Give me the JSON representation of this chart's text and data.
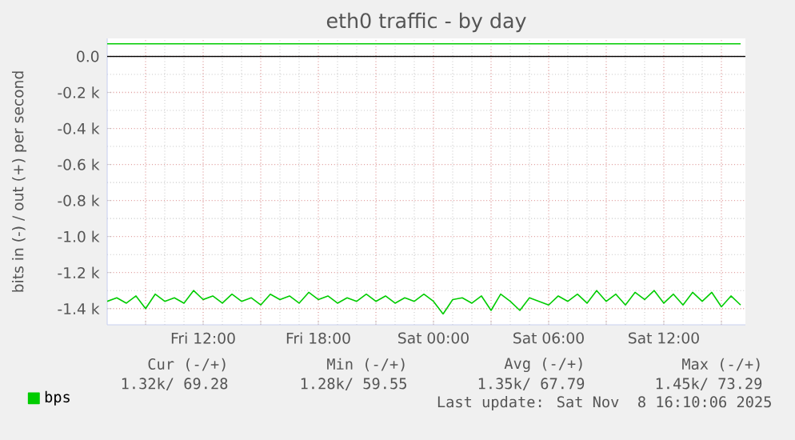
{
  "chart_data": {
    "type": "line",
    "title": "eth0 traffic - by day",
    "ylabel": "bits in (-) / out (+) per second",
    "x": [
      "2025-11-07T07:00",
      "2025-11-07T07:30",
      "2025-11-07T08:00",
      "2025-11-07T08:30",
      "2025-11-07T09:00",
      "2025-11-07T09:30",
      "2025-11-07T10:00",
      "2025-11-07T10:30",
      "2025-11-07T11:00",
      "2025-11-07T11:30",
      "2025-11-07T12:00",
      "2025-11-07T12:30",
      "2025-11-07T13:00",
      "2025-11-07T13:30",
      "2025-11-07T14:00",
      "2025-11-07T14:30",
      "2025-11-07T15:00",
      "2025-11-07T15:30",
      "2025-11-07T16:00",
      "2025-11-07T16:30",
      "2025-11-07T17:00",
      "2025-11-07T17:30",
      "2025-11-07T18:00",
      "2025-11-07T18:30",
      "2025-11-07T19:00",
      "2025-11-07T19:30",
      "2025-11-07T20:00",
      "2025-11-07T20:30",
      "2025-11-07T21:00",
      "2025-11-07T21:30",
      "2025-11-07T22:00",
      "2025-11-07T22:30",
      "2025-11-07T23:00",
      "2025-11-07T23:30",
      "2025-11-08T00:00",
      "2025-11-08T00:30",
      "2025-11-08T01:00",
      "2025-11-08T01:30",
      "2025-11-08T02:00",
      "2025-11-08T02:30",
      "2025-11-08T03:00",
      "2025-11-08T03:30",
      "2025-11-08T04:00",
      "2025-11-08T04:30",
      "2025-11-08T05:00",
      "2025-11-08T05:30",
      "2025-11-08T06:00",
      "2025-11-08T06:30",
      "2025-11-08T07:00",
      "2025-11-08T07:30",
      "2025-11-08T08:00",
      "2025-11-08T08:30",
      "2025-11-08T09:00",
      "2025-11-08T09:30",
      "2025-11-08T10:00",
      "2025-11-08T10:30",
      "2025-11-08T11:00",
      "2025-11-08T11:30",
      "2025-11-08T12:00",
      "2025-11-08T12:30",
      "2025-11-08T13:00",
      "2025-11-08T13:30",
      "2025-11-08T14:00",
      "2025-11-08T14:30",
      "2025-11-08T15:00",
      "2025-11-08T15:30",
      "2025-11-08T16:00"
    ],
    "series": [
      {
        "name": "bps",
        "color": "#00cc00",
        "values": [
          -1360,
          -1340,
          -1370,
          -1330,
          -1400,
          -1320,
          -1360,
          -1340,
          -1370,
          -1300,
          -1350,
          -1330,
          -1370,
          -1320,
          -1360,
          -1340,
          -1380,
          -1320,
          -1350,
          -1330,
          -1370,
          -1310,
          -1350,
          -1330,
          -1370,
          -1340,
          -1360,
          -1320,
          -1360,
          -1330,
          -1370,
          -1340,
          -1360,
          -1320,
          -1360,
          -1430,
          -1350,
          -1340,
          -1370,
          -1330,
          -1410,
          -1320,
          -1360,
          -1410,
          -1340,
          -1360,
          -1380,
          -1330,
          -1360,
          -1320,
          -1370,
          -1300,
          -1360,
          -1320,
          -1380,
          -1310,
          -1350,
          -1300,
          -1370,
          -1320,
          -1380,
          -1310,
          -1360,
          -1310,
          -1390,
          -1330,
          -1380
        ]
      },
      {
        "color": "#00cc00",
        "values": [
          70,
          70,
          70,
          70,
          70,
          70,
          70,
          70,
          70,
          70,
          70,
          70,
          70,
          70,
          70,
          70,
          70,
          70,
          70,
          70,
          70,
          70,
          70,
          70,
          70,
          70,
          70,
          70,
          70,
          70,
          70,
          70,
          70,
          70,
          70,
          70,
          70,
          70,
          70,
          70,
          70,
          70,
          70,
          70,
          70,
          70,
          70,
          70,
          70,
          70,
          70,
          70,
          70,
          70,
          70,
          70,
          70,
          70,
          70,
          70,
          70,
          70,
          70,
          70,
          70,
          70,
          70
        ]
      }
    ],
    "xlim": [
      "2025-11-07T07:00",
      "2025-11-08T16:15"
    ],
    "xticks": [
      {
        "value": "2025-11-07T09:00",
        "label": null
      },
      {
        "value": "2025-11-07T12:00",
        "label": "Fri 12:00"
      },
      {
        "value": "2025-11-07T15:00",
        "label": null
      },
      {
        "value": "2025-11-07T18:00",
        "label": "Fri 18:00"
      },
      {
        "value": "2025-11-07T21:00",
        "label": null
      },
      {
        "value": "2025-11-08T00:00",
        "label": "Sat 00:00"
      },
      {
        "value": "2025-11-08T03:00",
        "label": null
      },
      {
        "value": "2025-11-08T06:00",
        "label": "Sat 06:00"
      },
      {
        "value": "2025-11-08T09:00",
        "label": null
      },
      {
        "value": "2025-11-08T12:00",
        "label": "Sat 12:00"
      },
      {
        "value": "2025-11-08T15:00",
        "label": null
      }
    ],
    "ylim": [
      -1490,
      100
    ],
    "yticks": [
      {
        "value": -1400,
        "label": "-1.4 k"
      },
      {
        "value": -1200,
        "label": "-1.2 k"
      },
      {
        "value": -1000,
        "label": "-1.0 k"
      },
      {
        "value": -800,
        "label": "-0.8 k"
      },
      {
        "value": -600,
        "label": "-0.6 k"
      },
      {
        "value": -400,
        "label": "-0.4 k"
      },
      {
        "value": -200,
        "label": "-0.2 k"
      },
      {
        "value": 0,
        "label": "0.0"
      }
    ],
    "ref_lines": [
      {
        "axis": "y",
        "value": 0,
        "color": "#000000"
      }
    ],
    "grid": true,
    "legend": "bottom left",
    "marker": "none",
    "line_style": "solid",
    "annotations": [
      "Cur (-/+)",
      "Min (-/+)",
      "Avg (-/+)",
      "Max (-/+)",
      "1.32k/ 69.28",
      "1.28k/ 59.55",
      "1.35k/ 67.79",
      "1.45k/ 73.29",
      "Last update: Sat Nov  8 16:10:06 2025"
    ]
  }
}
